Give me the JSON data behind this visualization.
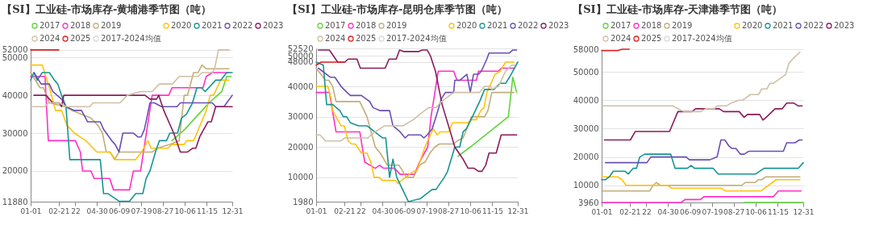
{
  "chart_data": [
    {
      "type": "line",
      "title": "【SI】工业硅-市场库存-黄埔港季节图（吨）",
      "xlim": [
        "--01-01",
        "--12-31"
      ],
      "ylim": [
        11880,
        52400
      ],
      "yticks": [
        11880,
        20000,
        30000,
        40000,
        50000,
        52000
      ],
      "xticks": [
        {
          "value": "--01-01",
          "label": "01-01"
        },
        {
          "value": "--02-21",
          "label": "02-21"
        },
        {
          "value": "--03-22",
          "label": "22"
        },
        {
          "value": "--04-30",
          "label": "04-30"
        },
        {
          "value": "--06-09",
          "label": "06-09"
        },
        {
          "value": "--07-19",
          "label": "07-19"
        },
        {
          "value": "--08-27",
          "label": "08-27"
        },
        {
          "value": "--10-06",
          "label": "10-06"
        },
        {
          "value": "--11-15",
          "label": "11-15"
        },
        {
          "value": "--12-31",
          "label": "12-31"
        }
      ],
      "grid": "y",
      "legend": "top",
      "series": [
        {
          "name": "2017",
          "color": "#5fd43a",
          "x": [
            "--09-13",
            "--10-06",
            "--11-19",
            "--12-12",
            "--12-21",
            "--12-29"
          ],
          "values": [
            28000,
            31000,
            38000,
            41000,
            45000,
            45000
          ]
        },
        {
          "name": "2018",
          "color": "#ff2fc8",
          "x": [
            "--01-01",
            "--01-27",
            "--02-02",
            "--03-22",
            "--03-31",
            "--04-04",
            "--04-19",
            "--04-25",
            "--05-23",
            "--05-30",
            "--06-28",
            "--07-05",
            "--07-18",
            "--08-08",
            "--09-07",
            "--09-13",
            "--11-08",
            "--11-14",
            "--11-25",
            "--12-25"
          ],
          "values": [
            45000,
            45000,
            28000,
            28000,
            25000,
            20000,
            20000,
            18000,
            18000,
            15000,
            15000,
            20000,
            20000,
            40000,
            40000,
            42000,
            42000,
            45000,
            46000,
            46000
          ]
        },
        {
          "name": "2019",
          "color": "#c2ad78",
          "x": [
            "--01-01",
            "--01-18",
            "--01-24",
            "--02-04",
            "--03-03",
            "--03-16",
            "--04-19",
            "--05-02",
            "--05-10",
            "--05-17",
            "--05-24",
            "--06-01",
            "--06-09",
            "--08-08",
            "--08-17",
            "--09-09",
            "--09-26",
            "--10-05",
            "--10-11",
            "--10-22",
            "--10-30",
            "--11-06",
            "--11-14",
            "--12-25"
          ],
          "values": [
            46000,
            42000,
            42000,
            38000,
            37000,
            36000,
            34000,
            32000,
            30000,
            25000,
            25000,
            23000,
            25000,
            25000,
            26000,
            27000,
            28000,
            40000,
            40000,
            46000,
            46000,
            48000,
            47000,
            47000
          ]
        },
        {
          "name": "2020",
          "color": "#ffc20e",
          "x": [
            "--01-01",
            "--01-22",
            "--02-04",
            "--02-15",
            "--02-26",
            "--03-07",
            "--03-20",
            "--04-10",
            "--04-30",
            "--05-23",
            "--06-03",
            "--07-09",
            "--07-20",
            "--07-31",
            "--08-06",
            "--09-05",
            "--09-13",
            "--10-05",
            "--10-09",
            "--10-22",
            "--10-28",
            "--11-14",
            "--11-21",
            "--11-27",
            "--12-10",
            "--12-25"
          ],
          "values": [
            48000,
            48000,
            42000,
            36000,
            36000,
            32000,
            30000,
            28000,
            25000,
            25000,
            23000,
            23000,
            25000,
            28000,
            26000,
            26000,
            27000,
            27000,
            28000,
            28000,
            30000,
            36000,
            40000,
            40000,
            44000,
            44000
          ]
        },
        {
          "name": "2021",
          "color": "#179494",
          "x": [
            "--01-01",
            "--01-07",
            "--01-13",
            "--01-22",
            "--02-04",
            "--02-13",
            "--02-19",
            "--02-26",
            "--03-05",
            "--03-12",
            "--05-06",
            "--05-12",
            "--05-20",
            "--06-09",
            "--06-28",
            "--07-09",
            "--07-22",
            "--07-28",
            "--08-04",
            "--08-14",
            "--08-21",
            "--09-03",
            "--09-09",
            "--09-23",
            "--09-30",
            "--10-09",
            "--10-20",
            "--10-28",
            "--11-05",
            "--11-12",
            "--12-01",
            "--12-10",
            "--12-21",
            "--12-31"
          ],
          "values": [
            44000,
            46000,
            44000,
            46000,
            46000,
            44000,
            43000,
            40000,
            37000,
            23000,
            23000,
            14000,
            14000,
            12000,
            12000,
            14000,
            14000,
            18000,
            20000,
            25000,
            28000,
            28000,
            30000,
            30000,
            34000,
            35000,
            38000,
            42000,
            42000,
            41000,
            44000,
            44000,
            46000,
            46000
          ]
        },
        {
          "name": "2022",
          "color": "#6a4fb3",
          "x": [
            "--01-07",
            "--01-20",
            "--02-04",
            "--02-10",
            "--02-26",
            "--03-01",
            "--03-05",
            "--03-20",
            "--04-02",
            "--04-13",
            "--05-06",
            "--05-12",
            "--05-27",
            "--06-02",
            "--06-09",
            "--06-16",
            "--07-05",
            "--07-13",
            "--07-19",
            "--07-25",
            "--08-04",
            "--08-12",
            "--08-25",
            "--09-22",
            "--09-28",
            "--11-25",
            "--12-01",
            "--12-16",
            "--12-21",
            "--12-31"
          ],
          "values": [
            46000,
            43000,
            43000,
            41000,
            39000,
            38000,
            37000,
            36000,
            36000,
            33000,
            33000,
            31000,
            28000,
            27000,
            25000,
            30000,
            30000,
            29000,
            29000,
            31000,
            38000,
            38000,
            37000,
            37000,
            38000,
            38000,
            37000,
            37000,
            38000,
            40000
          ]
        },
        {
          "name": "2023",
          "color": "#8a1a5c",
          "x": [
            "--01-07",
            "--01-29",
            "--02-10",
            "--02-22",
            "--02-26",
            "--03-01",
            "--07-26",
            "--08-04",
            "--08-16",
            "--08-20",
            "--08-29",
            "--09-16",
            "--09-28",
            "--10-11",
            "--10-20",
            "--10-26",
            "--11-02",
            "--11-17",
            "--11-23",
            "--12-01",
            "--12-31"
          ],
          "values": [
            40000,
            40000,
            38000,
            38000,
            37000,
            40000,
            40000,
            39000,
            39000,
            40000,
            36000,
            30000,
            25000,
            25000,
            26000,
            26000,
            29000,
            33000,
            33000,
            37000,
            37000
          ]
        },
        {
          "name": "2024",
          "color": "#cfc0a6",
          "x": [
            "--01-01",
            "--01-27",
            "--02-02",
            "--02-22",
            "--03-05",
            "--04-17",
            "--04-23",
            "--06-11",
            "--06-24",
            "--07-18",
            "--08-08",
            "--08-21",
            "--09-14",
            "--09-26",
            "--10-30",
            "--11-06",
            "--11-25",
            "--11-29",
            "--12-06",
            "--12-25"
          ],
          "values": [
            37000,
            37000,
            38000,
            38000,
            37000,
            37000,
            38000,
            38000,
            40000,
            41000,
            41000,
            43000,
            43000,
            45000,
            45000,
            46000,
            46000,
            47000,
            52000,
            52000
          ]
        },
        {
          "name": "2025",
          "color": "#e02020",
          "x": [
            "--01-01",
            "--02-21"
          ],
          "values": [
            52000,
            52000
          ]
        },
        {
          "name": "2017-2024均值",
          "color": "#d9d9d9"
        }
      ]
    },
    {
      "type": "line",
      "title": "【SI】工业硅-市场库存-昆明仓库季节图（吨）",
      "xlim": [
        "--01-01",
        "--12-31"
      ],
      "ylim": [
        1980,
        52520
      ],
      "yticks": [
        1980,
        10000,
        20000,
        30000,
        40000,
        48000,
        50000,
        52520
      ],
      "xticks": [
        {
          "value": "--01-01",
          "label": "01-01"
        },
        {
          "value": "--02-21",
          "label": "02-21"
        },
        {
          "value": "--03-22",
          "label": "22"
        },
        {
          "value": "--04-30",
          "label": "04-30"
        },
        {
          "value": "--06-09",
          "label": "06-09"
        },
        {
          "value": "--07-19",
          "label": "07-19"
        },
        {
          "value": "--08-27",
          "label": "08-27"
        },
        {
          "value": "--10-06",
          "label": "10-06"
        },
        {
          "value": "--11-15",
          "label": "11-15"
        },
        {
          "value": "--12-31",
          "label": "12-31"
        }
      ],
      "grid": "y",
      "legend": "top",
      "series": [
        {
          "name": "2017",
          "color": "#5fd43a",
          "x": [
            "--09-14",
            "--10-06",
            "--12-14",
            "--12-22",
            "--12-29"
          ],
          "values": [
            17000,
            20000,
            30000,
            43000,
            38000
          ]
        },
        {
          "name": "2018",
          "color": "#ff2fc8",
          "x": [
            "--01-01",
            "--01-25",
            "--02-06",
            "--03-20",
            "--03-29",
            "--04-17",
            "--04-25",
            "--05-02",
            "--05-22",
            "--06-01",
            "--06-27",
            "--07-06",
            "--07-21",
            "--07-27",
            "--08-09",
            "--09-06",
            "--09-12",
            "--10-17",
            "--10-21",
            "--11-26",
            "--12-01",
            "--12-24"
          ],
          "values": [
            38000,
            38000,
            25000,
            25000,
            15000,
            13000,
            14000,
            13000,
            13000,
            11000,
            11000,
            15000,
            20000,
            30000,
            45000,
            45000,
            42000,
            42000,
            45000,
            45000,
            46000,
            46000
          ]
        },
        {
          "name": "2019",
          "color": "#c2ad78",
          "x": [
            "--01-01",
            "--01-18",
            "--01-24",
            "--01-31",
            "--02-06",
            "--03-20",
            "--04-02",
            "--04-17",
            "--04-26",
            "--05-09",
            "--05-30",
            "--06-06",
            "--06-12",
            "--06-25",
            "--07-06",
            "--07-16",
            "--07-25",
            "--08-03",
            "--08-11",
            "--09-06",
            "--09-12",
            "--09-23",
            "--10-02",
            "--10-08",
            "--11-01",
            "--11-07",
            "--11-14",
            "--12-24"
          ],
          "values": [
            46000,
            42000,
            42000,
            40000,
            35000,
            35000,
            30000,
            20000,
            18000,
            14000,
            14000,
            12000,
            10000,
            10000,
            14000,
            15000,
            18000,
            20000,
            21000,
            21000,
            22000,
            23000,
            27000,
            30000,
            30000,
            32000,
            38000,
            38000
          ]
        },
        {
          "name": "2020",
          "color": "#ffc20e",
          "x": [
            "--01-01",
            "--01-22",
            "--01-28",
            "--01-31",
            "--02-15",
            "--02-21",
            "--02-28",
            "--03-05",
            "--03-12",
            "--03-23",
            "--04-02",
            "--04-09",
            "--04-15",
            "--04-24",
            "--04-30",
            "--05-24",
            "--05-28",
            "--06-25",
            "--07-01",
            "--07-16",
            "--07-31",
            "--08-07",
            "--08-13",
            "--08-28",
            "--09-04",
            "--10-02",
            "--10-08",
            "--10-17",
            "--10-25",
            "--10-31",
            "--11-05",
            "--11-20",
            "--11-29",
            "--12-09",
            "--12-24"
          ],
          "values": [
            40000,
            40000,
            36000,
            32000,
            27000,
            27000,
            22000,
            21000,
            21000,
            18000,
            18000,
            15000,
            10000,
            10000,
            9000,
            9000,
            8000,
            12000,
            12000,
            20000,
            26000,
            24000,
            25000,
            25000,
            28000,
            28000,
            29000,
            29000,
            32000,
            33000,
            38000,
            44000,
            45000,
            48000,
            48000
          ]
        },
        {
          "name": "2021",
          "color": "#179494",
          "x": [
            "--01-01",
            "--01-14",
            "--01-20",
            "--01-31",
            "--02-13",
            "--02-19",
            "--02-25",
            "--03-03",
            "--03-18",
            "--04-02",
            "--04-30",
            "--05-06",
            "--05-13",
            "--05-19",
            "--05-26",
            "--06-16",
            "--07-08",
            "--07-29",
            "--08-05",
            "--08-20",
            "--08-26",
            "--09-08",
            "--09-17",
            "--09-23",
            "--09-29",
            "--10-10",
            "--10-23",
            "--11-01",
            "--11-18",
            "--11-29",
            "--12-09",
            "--12-16",
            "--12-22",
            "--12-31"
          ],
          "values": [
            48000,
            47000,
            34000,
            34000,
            32000,
            30000,
            30000,
            28000,
            27000,
            27000,
            23000,
            23000,
            10000,
            16000,
            10000,
            2000,
            3000,
            6000,
            6000,
            10000,
            12000,
            20000,
            20000,
            25000,
            26000,
            30000,
            35000,
            39000,
            39000,
            41000,
            41000,
            43000,
            45000,
            48000
          ]
        },
        {
          "name": "2022",
          "color": "#6a4fb3",
          "x": [
            "--01-05",
            "--01-27",
            "--02-04",
            "--02-15",
            "--02-26",
            "--03-03",
            "--03-23",
            "--04-07",
            "--04-13",
            "--04-26",
            "--05-13",
            "--05-19",
            "--06-01",
            "--06-10",
            "--06-16",
            "--07-08",
            "--07-14",
            "--07-20",
            "--07-29",
            "--08-05",
            "--08-15",
            "--08-22",
            "--09-06",
            "--09-08",
            "--09-17",
            "--09-30",
            "--10-06",
            "--10-12",
            "--10-21",
            "--10-26",
            "--11-05",
            "--11-09",
            "--12-16",
            "--12-22",
            "--12-29"
          ],
          "values": [
            46000,
            43000,
            43000,
            40000,
            38000,
            37000,
            37000,
            35000,
            33000,
            32000,
            32000,
            27000,
            25000,
            23000,
            24000,
            24000,
            23000,
            24000,
            26000,
            30000,
            36000,
            38000,
            38000,
            42000,
            42000,
            44000,
            38000,
            44000,
            44000,
            45000,
            49000,
            51000,
            51000,
            52000,
            52000
          ]
        },
        {
          "name": "2023",
          "color": "#8a1a5c",
          "x": [
            "--01-05",
            "--01-25",
            "--02-09",
            "--02-22",
            "--02-28",
            "--03-15",
            "--03-21",
            "--05-05",
            "--05-12",
            "--05-25",
            "--05-31",
            "--06-07",
            "--07-05",
            "--07-11",
            "--07-20",
            "--07-26",
            "--08-04",
            "--08-16",
            "--08-31",
            "--09-08",
            "--09-23",
            "--10-02",
            "--10-13",
            "--10-21",
            "--10-27",
            "--11-03",
            "--11-09",
            "--11-22",
            "--12-01",
            "--12-29"
          ],
          "values": [
            52000,
            52000,
            48000,
            48000,
            49000,
            49000,
            46000,
            46000,
            49000,
            49000,
            52000,
            51500,
            51500,
            52000,
            52000,
            50000,
            45000,
            34000,
            25000,
            20000,
            16000,
            13000,
            13000,
            12000,
            12000,
            14000,
            18000,
            18000,
            24000,
            24000
          ]
        },
        {
          "name": "2024",
          "color": "#cfc0a6",
          "x": [
            "--01-01",
            "--01-08",
            "--01-18",
            "--02-15",
            "--02-22",
            "--04-04",
            "--04-09",
            "--04-17",
            "--05-04",
            "--06-06",
            "--06-25",
            "--07-08",
            "--07-23",
            "--08-05",
            "--08-15",
            "--09-06",
            "--10-23",
            "--11-01",
            "--11-12",
            "--11-14",
            "--11-26",
            "--12-09",
            "--12-20",
            "--12-26"
          ],
          "values": [
            24000,
            24000,
            22000,
            22000,
            23000,
            23000,
            24000,
            25000,
            27000,
            27000,
            29000,
            31000,
            33000,
            33000,
            35000,
            38000,
            38000,
            40000,
            40000,
            39000,
            40000,
            45000,
            47000,
            47000
          ]
        },
        {
          "name": "2025",
          "color": "#e02020",
          "x": [
            "--01-01",
            "--01-10",
            "--02-19"
          ],
          "values": [
            47000,
            48000,
            48000
          ]
        },
        {
          "name": "2017-2024均值",
          "color": "#d9d9d9"
        }
      ]
    },
    {
      "type": "line",
      "title": "【SI】工业硅-市场库存-天津港季节图（吨）",
      "xlim": [
        "--01-01",
        "--12-31"
      ],
      "ylim": [
        3960,
        58000
      ],
      "yticks": [
        3960,
        10000,
        20000,
        30000,
        40000,
        50000,
        58000
      ],
      "xticks": [
        {
          "value": "--01-01",
          "label": "01-01"
        },
        {
          "value": "--02-21",
          "label": "02-21"
        },
        {
          "value": "--03-22",
          "label": "22"
        },
        {
          "value": "--04-30",
          "label": "04-30"
        },
        {
          "value": "--06-09",
          "label": "06-09"
        },
        {
          "value": "--07-19",
          "label": "07-19"
        },
        {
          "value": "--08-27",
          "label": "08-27"
        },
        {
          "value": "--10-06",
          "label": "10-06"
        },
        {
          "value": "--11-15",
          "label": "11-15"
        },
        {
          "value": "--12-31",
          "label": "12-31"
        }
      ],
      "grid": "y",
      "legend": "top",
      "series": [
        {
          "name": "2017",
          "color": "#5fd43a",
          "x": [
            "--09-15",
            "--12-31"
          ],
          "values": [
            3960,
            3960
          ]
        },
        {
          "name": "2018",
          "color": "#ff2fc8",
          "x": [
            "--01-01",
            "--05-24",
            "--05-31",
            "--06-28",
            "--07-04",
            "--11-07",
            "--11-16",
            "--12-27"
          ],
          "values": [
            3960,
            3960,
            5000,
            5000,
            6000,
            6000,
            8000,
            8000
          ]
        },
        {
          "name": "2019",
          "color": "#c2ad78",
          "x": [
            "--01-01",
            "--03-28",
            "--04-03",
            "--04-09",
            "--04-16",
            "--09-11",
            "--09-17",
            "--10-05",
            "--10-11",
            "--10-17",
            "--10-24",
            "--12-25"
          ],
          "values": [
            8000,
            8000,
            10000,
            11000,
            10000,
            10000,
            11000,
            11000,
            12000,
            12000,
            13000,
            13000
          ]
        },
        {
          "name": "2020",
          "color": "#ffc20e",
          "x": [
            "--01-01",
            "--01-30",
            "--02-07",
            "--02-14",
            "--04-29",
            "--05-07",
            "--08-05",
            "--08-12",
            "--10-15",
            "--11-12",
            "--12-25"
          ],
          "values": [
            13000,
            13000,
            12000,
            10000,
            10000,
            9000,
            9000,
            8000,
            8000,
            12000,
            12000
          ]
        },
        {
          "name": "2021",
          "color": "#179494",
          "x": [
            "--01-01",
            "--01-08",
            "--01-15",
            "--01-22",
            "--02-12",
            "--02-18",
            "--02-27",
            "--03-04",
            "--03-10",
            "--03-19",
            "--05-05",
            "--05-13",
            "--06-04",
            "--06-11",
            "--06-17",
            "--07-21",
            "--07-30",
            "--10-06",
            "--10-21",
            "--12-22",
            "--12-31"
          ],
          "values": [
            12000,
            12000,
            13000,
            15000,
            15000,
            14000,
            16000,
            16000,
            20000,
            21000,
            21000,
            16000,
            16000,
            17000,
            16000,
            16000,
            14000,
            14000,
            16000,
            16000,
            18000
          ]
        },
        {
          "name": "2022",
          "color": "#6a4fb3",
          "x": [
            "--01-08",
            "--03-23",
            "--03-30",
            "--06-02",
            "--06-08",
            "--07-15",
            "--07-28",
            "--08-04",
            "--08-11",
            "--08-18",
            "--08-24",
            "--08-31",
            "--09-08",
            "--09-15",
            "--09-23",
            "--11-25",
            "--12-01",
            "--12-16",
            "--12-24",
            "--12-29"
          ],
          "values": [
            18000,
            18000,
            20000,
            20000,
            19000,
            19000,
            20000,
            26000,
            26000,
            24000,
            23000,
            23000,
            21000,
            21000,
            22000,
            22000,
            25000,
            25000,
            26000,
            26000
          ]
        },
        {
          "name": "2023",
          "color": "#8a1a5c",
          "x": [
            "--01-06",
            "--02-22",
            "--03-02",
            "--05-03",
            "--05-18",
            "--06-13",
            "--06-19",
            "--08-01",
            "--08-09",
            "--09-06",
            "--09-15",
            "--09-21",
            "--10-13",
            "--10-19",
            "--10-25",
            "--11-10",
            "--11-23",
            "--12-01",
            "--12-14",
            "--12-22",
            "--12-29"
          ],
          "values": [
            26000,
            26000,
            29000,
            29000,
            36000,
            36000,
            37000,
            37000,
            36000,
            36000,
            34000,
            35000,
            35000,
            33000,
            34000,
            37000,
            37000,
            39000,
            39000,
            38000,
            38000
          ]
        },
        {
          "name": "2024",
          "color": "#cfc0a6",
          "x": [
            "--01-01",
            "--05-09",
            "--05-18",
            "--05-29",
            "--06-28",
            "--07-08",
            "--07-23",
            "--07-28",
            "--08-14",
            "--08-22",
            "--09-06",
            "--09-12",
            "--09-26",
            "--10-11",
            "--10-17",
            "--10-26",
            "--11-01",
            "--11-07",
            "--11-29",
            "--12-05",
            "--12-14",
            "--12-25"
          ],
          "values": [
            38000,
            38000,
            37000,
            36000,
            36000,
            37000,
            37000,
            38000,
            38000,
            39000,
            40000,
            40000,
            42000,
            42000,
            44000,
            44000,
            46000,
            46000,
            49000,
            53000,
            55000,
            57000
          ]
        },
        {
          "name": "2025",
          "color": "#e02020",
          "x": [
            "--01-01",
            "--01-30",
            "--02-07",
            "--02-20"
          ],
          "values": [
            57500,
            57500,
            58000,
            58000
          ]
        },
        {
          "name": "2017-2024均值",
          "color": "#d9d9d9"
        }
      ]
    }
  ]
}
